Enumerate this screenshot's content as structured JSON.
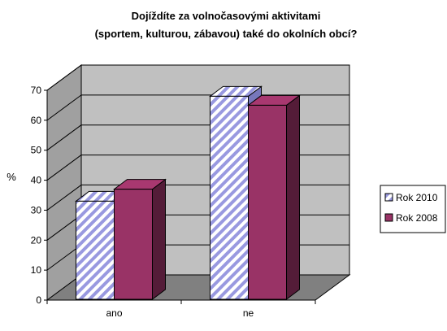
{
  "chart_data": {
    "type": "bar",
    "title_lines": [
      "Dojíždíte za volnočasovými aktivitami",
      "(sportem, kulturou, zábavou) také do okolních obcí?"
    ],
    "ylabel": "%",
    "xlabel": "",
    "categories": [
      "ano",
      "ne"
    ],
    "ylim": [
      0,
      70
    ],
    "yticks": [
      0,
      10,
      20,
      30,
      40,
      50,
      60,
      70
    ],
    "series": [
      {
        "name": "Rok 2010",
        "values": [
          33,
          68
        ],
        "color": "#ffffff",
        "pattern": "diagonal-blue-stripes"
      },
      {
        "name": "Rok 2008",
        "values": [
          37,
          65
        ],
        "color": "#993366"
      }
    ],
    "grid": true,
    "three_d": true,
    "legend_position": "right"
  }
}
